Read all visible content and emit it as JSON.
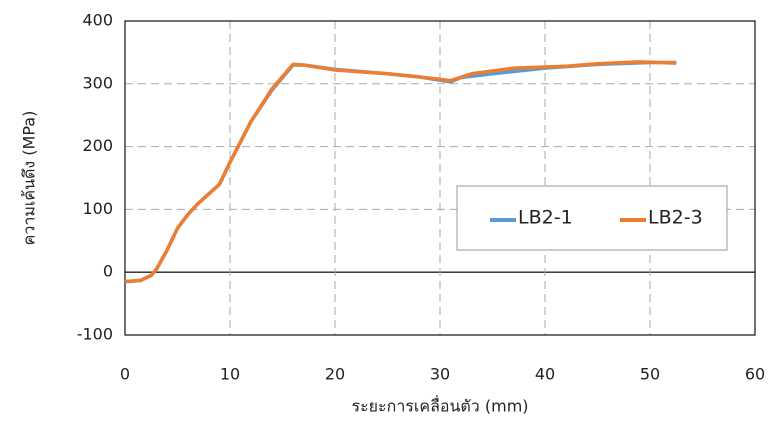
{
  "chart_data": {
    "type": "line",
    "x_label": "ระยะการเคลื่อนตัว (mm)",
    "y_label": "ความเค้นดึง (MPa)",
    "xlim": [
      0,
      60
    ],
    "xticks": [
      0,
      10,
      20,
      30,
      40,
      50,
      60
    ],
    "ylim": [
      -100,
      400
    ],
    "yticks": [
      -100,
      0,
      100,
      200,
      300,
      400
    ],
    "grid": true,
    "legend": "right",
    "series": [
      {
        "name": "LB2-1",
        "color": "#5b9bd5",
        "x": [
          0,
          1.5,
          2.5,
          3,
          4,
          5,
          6,
          7,
          8,
          9,
          10,
          12,
          14,
          16,
          17,
          20,
          25,
          28,
          31,
          32,
          35,
          40,
          45,
          50,
          52.5
        ],
        "values": [
          -15,
          -13,
          -5,
          5,
          35,
          70,
          92,
          110,
          125,
          140,
          175,
          240,
          290,
          330,
          330,
          323,
          316,
          311,
          303,
          310,
          316,
          325,
          331,
          334,
          334
        ]
      },
      {
        "name": "LB2-3",
        "color": "#ed7d31",
        "x": [
          0,
          1.5,
          2.5,
          3,
          4,
          5,
          6,
          7,
          8,
          9,
          10,
          12,
          14,
          16,
          17,
          20,
          25,
          28,
          31,
          33,
          37,
          42,
          45,
          49,
          52.5
        ],
        "values": [
          -15,
          -13,
          -5,
          5,
          35,
          70,
          92,
          110,
          125,
          140,
          175,
          240,
          292,
          331,
          330,
          322,
          316,
          311,
          305,
          316,
          325,
          328,
          332,
          335,
          333
        ]
      }
    ]
  }
}
